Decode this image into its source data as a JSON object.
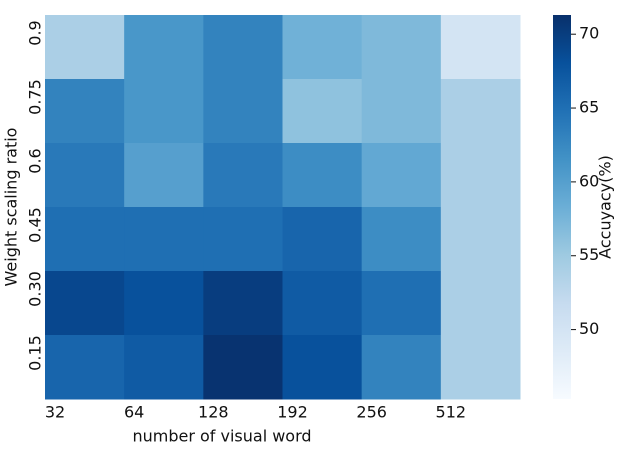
{
  "chart_data": {
    "type": "heatmap",
    "x_label": "number of visual word",
    "y_label": "Weight scaling ratio",
    "x_categories": [
      "32",
      "64",
      "128",
      "192",
      "256",
      "512"
    ],
    "y_categories": [
      "0.9",
      "0.75",
      "0.6",
      "0.45",
      "0.30",
      "0.15"
    ],
    "values": [
      [
        54,
        61,
        63,
        58,
        57,
        50
      ],
      [
        63,
        61,
        63,
        56,
        57,
        54
      ],
      [
        64,
        60,
        64,
        62,
        59,
        54
      ],
      [
        65,
        65,
        65,
        66,
        62,
        54
      ],
      [
        69,
        68,
        70,
        67,
        65,
        54
      ],
      [
        66,
        67,
        71,
        68,
        63,
        54
      ]
    ],
    "colorbar_label": "Accuyacy(%)",
    "zlim": [
      45.3,
      71.3
    ],
    "zticks": [
      50,
      55,
      60,
      65,
      70
    ],
    "colormap": [
      "#f7fbff",
      "#deebf7",
      "#c6dbef",
      "#9ecae1",
      "#6baed6",
      "#4292c6",
      "#2171b5",
      "#08519c",
      "#08306b"
    ]
  }
}
